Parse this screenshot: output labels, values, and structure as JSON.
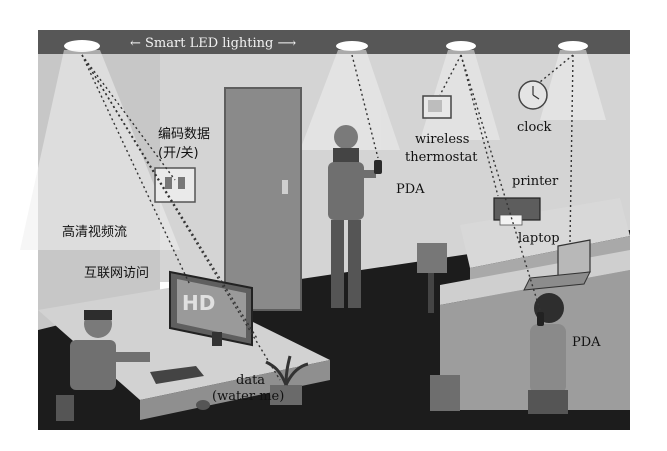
{
  "labels": {
    "banner": "← Smart LED lighting ⟶",
    "coded_data_line1": "编码数据",
    "coded_data_line2": "(开/关)",
    "hd_video": "高清视频流",
    "internet": "互联网访问",
    "wireless": "wireless",
    "thermostat": "thermostat",
    "clock": "clock",
    "printer": "printer",
    "laptop": "laptop",
    "pda_standing": "PDA",
    "pda_seated": "PDA",
    "data": "data",
    "water_me": "(water me)",
    "hd_logo": "HD"
  },
  "colors": {
    "ceiling": "#5a5a5a",
    "wall": "#d6d6d6",
    "floor": "#1e1e1e",
    "desk": "#cfcfcf",
    "door": "#8a8a8a"
  }
}
